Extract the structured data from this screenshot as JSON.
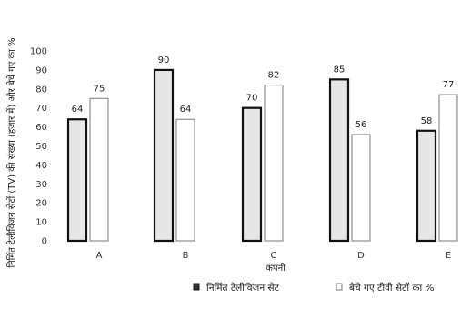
{
  "chart_data": {
    "type": "bar",
    "categories": [
      "A",
      "B",
      "C",
      "D",
      "E"
    ],
    "series": [
      {
        "name": "निर्मित टेलीविजन सेट",
        "values": [
          64,
          90,
          70,
          85,
          58
        ],
        "color": "#e6e6e6",
        "stroke": "#111111"
      },
      {
        "name": "बेचे गए टीवी सेटों का %",
        "values": [
          75,
          64,
          82,
          56,
          77
        ],
        "color": "#ffffff",
        "stroke": "#777777"
      }
    ],
    "xlabel": "कंपनी",
    "ylabel": "निर्मित टेलीविजन सेटों (TV) की संख्या (हजार में) और बेचे गए का %",
    "yticks": [
      0,
      10,
      20,
      30,
      40,
      50,
      60,
      70,
      80,
      90,
      100
    ],
    "ylim": [
      0,
      100
    ],
    "grid": false,
    "legend_position": "bottom"
  }
}
